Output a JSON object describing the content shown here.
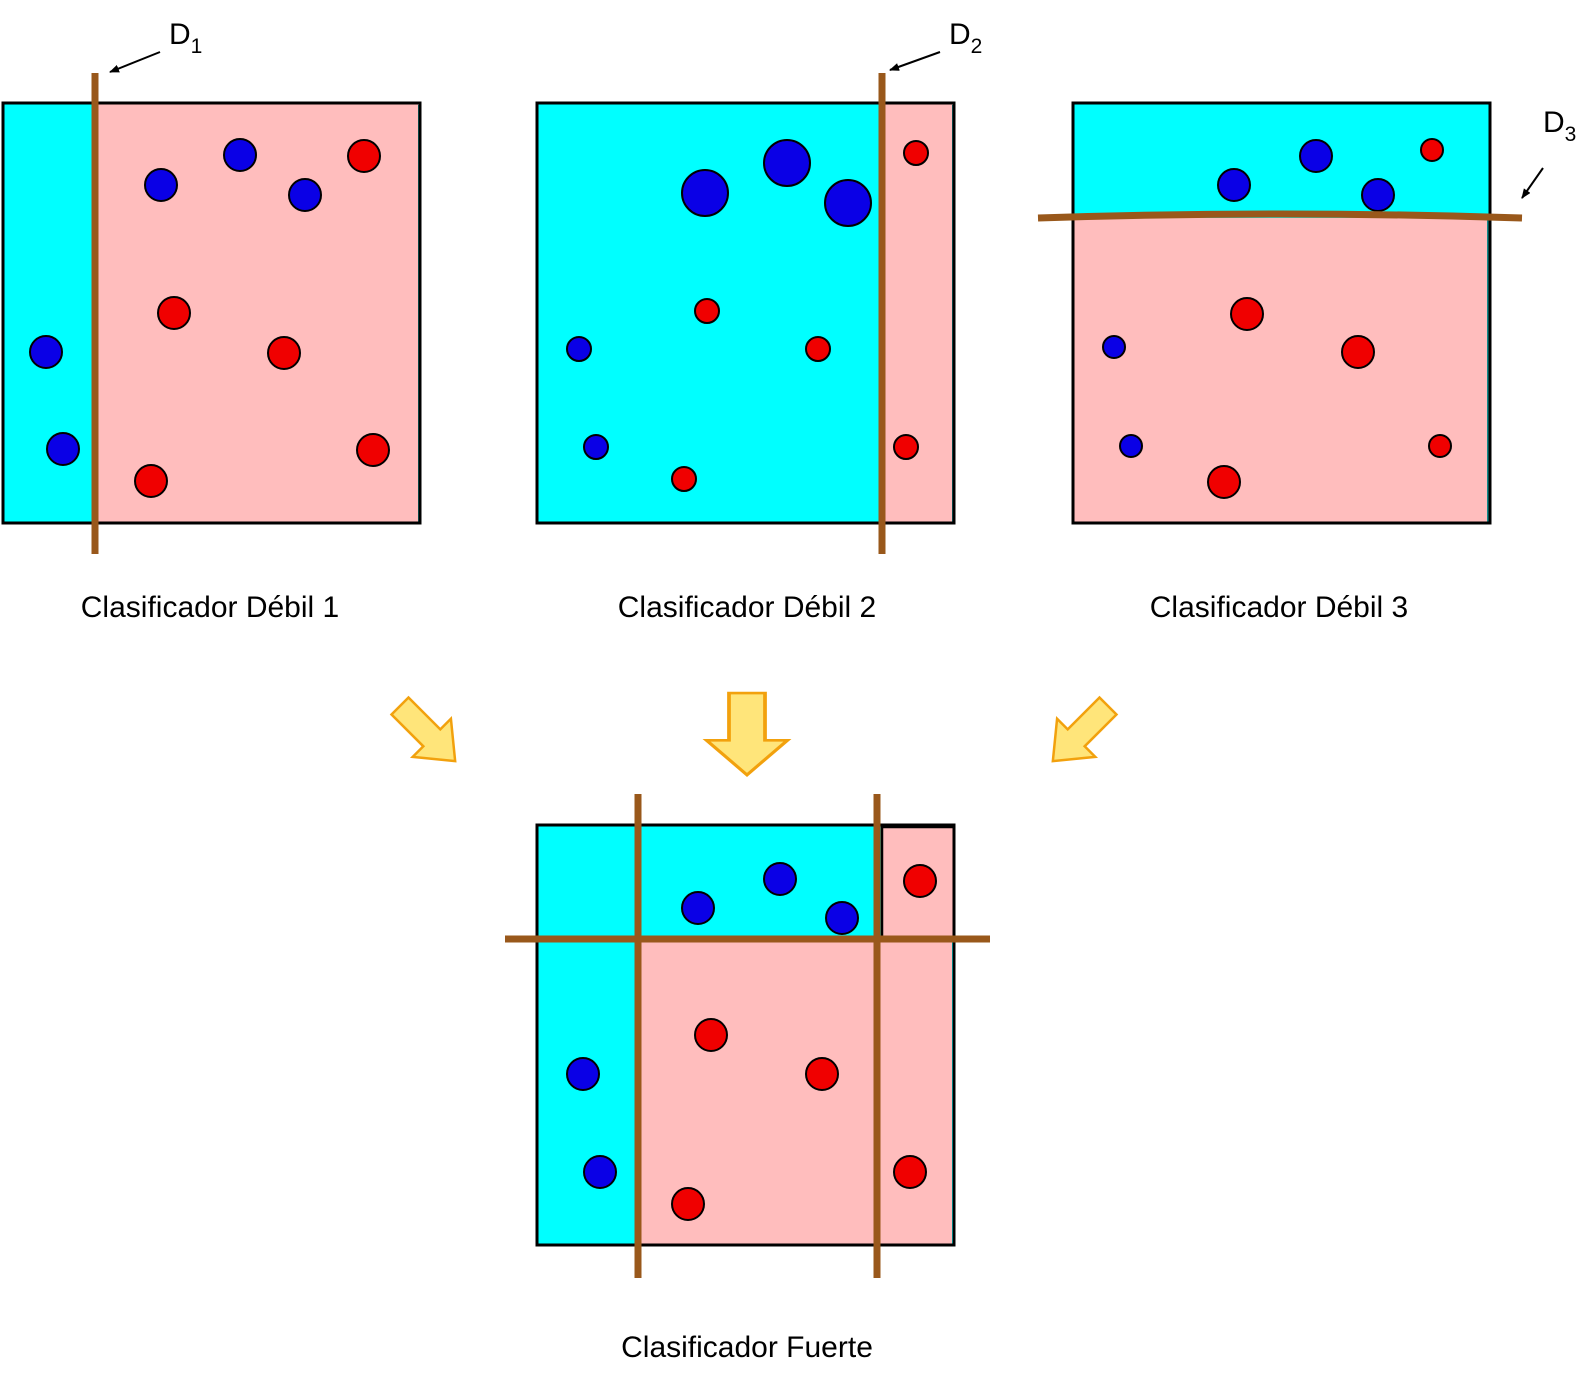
{
  "colors": {
    "blue_region": "#00FFFF",
    "red_region": "#FFBDBD",
    "blue_point": "#0A00E6",
    "red_point": "#F00000",
    "boundary": "#99581B",
    "arrow_fill": "#FFE57A",
    "arrow_stroke": "#F2A10D"
  },
  "panels": {
    "weak1": {
      "caption": "Clasificador Débil 1",
      "boundary_label": "D",
      "boundary_sub": "1",
      "points": [
        {
          "cls": "blue",
          "weight": "medium"
        },
        {
          "cls": "blue",
          "weight": "medium"
        },
        {
          "cls": "blue",
          "weight": "medium"
        },
        {
          "cls": "blue",
          "weight": "medium"
        },
        {
          "cls": "blue",
          "weight": "medium"
        },
        {
          "cls": "red",
          "weight": "medium"
        },
        {
          "cls": "red",
          "weight": "medium"
        },
        {
          "cls": "red",
          "weight": "medium"
        },
        {
          "cls": "red",
          "weight": "medium"
        },
        {
          "cls": "red",
          "weight": "medium"
        }
      ]
    },
    "weak2": {
      "caption": "Clasificador Débil 2",
      "boundary_label": "D",
      "boundary_sub": "2",
      "points": [
        {
          "cls": "blue",
          "weight": "large"
        },
        {
          "cls": "blue",
          "weight": "large"
        },
        {
          "cls": "blue",
          "weight": "large"
        },
        {
          "cls": "blue",
          "weight": "small"
        },
        {
          "cls": "blue",
          "weight": "small"
        },
        {
          "cls": "red",
          "weight": "small"
        },
        {
          "cls": "red",
          "weight": "small"
        },
        {
          "cls": "red",
          "weight": "small"
        },
        {
          "cls": "red",
          "weight": "small"
        },
        {
          "cls": "red",
          "weight": "small"
        }
      ]
    },
    "weak3": {
      "caption": "Clasificador Débil 3",
      "boundary_label": "D",
      "boundary_sub": "3",
      "points": [
        {
          "cls": "blue",
          "weight": "medium"
        },
        {
          "cls": "blue",
          "weight": "medium"
        },
        {
          "cls": "blue",
          "weight": "medium"
        },
        {
          "cls": "red",
          "weight": "tiny"
        },
        {
          "cls": "red",
          "weight": "medium"
        },
        {
          "cls": "red",
          "weight": "medium"
        },
        {
          "cls": "red",
          "weight": "medium"
        },
        {
          "cls": "blue",
          "weight": "tiny"
        },
        {
          "cls": "blue",
          "weight": "tiny"
        },
        {
          "cls": "red",
          "weight": "tiny"
        }
      ]
    },
    "strong": {
      "caption": "Clasificador Fuerte"
    }
  }
}
